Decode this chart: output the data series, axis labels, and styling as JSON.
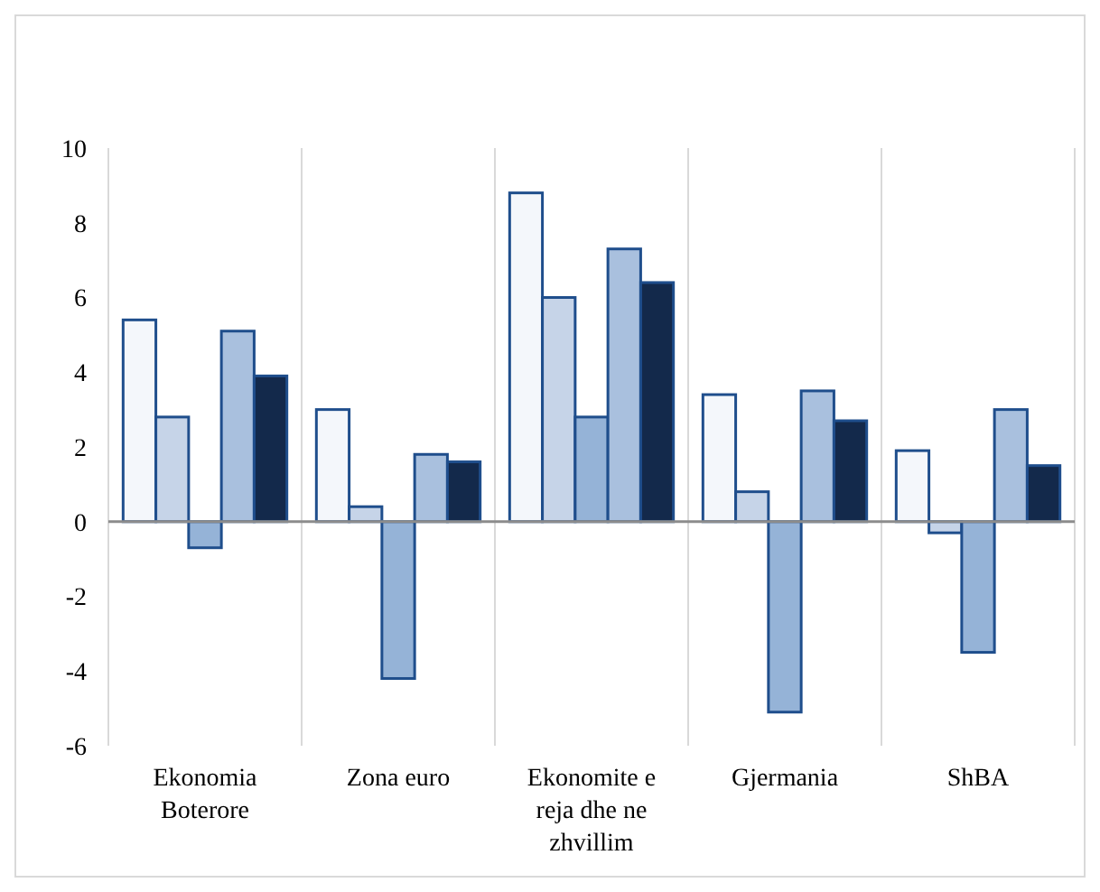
{
  "chart_data": {
    "type": "bar",
    "categories": [
      "Ekonomia Boterore",
      "Zona euro",
      "Ekonomite e reja dhe ne zhvillim",
      "Gjermania",
      "ShBA"
    ],
    "series": [
      {
        "color": "#f4f7fb",
        "values": [
          5.4,
          3.0,
          8.8,
          3.4,
          1.9
        ]
      },
      {
        "color": "#c6d4e8",
        "values": [
          2.8,
          0.4,
          6.0,
          0.8,
          -0.3
        ]
      },
      {
        "color": "#95b3d7",
        "values": [
          -0.7,
          -4.2,
          2.8,
          -5.1,
          -3.5
        ]
      },
      {
        "color": "#a9c0de",
        "values": [
          5.1,
          1.8,
          7.3,
          3.5,
          3.0
        ]
      },
      {
        "color": "#13294b",
        "values": [
          3.9,
          1.6,
          6.4,
          2.7,
          1.5
        ]
      }
    ],
    "ylim": [
      -6,
      10
    ],
    "yticks": [
      -6,
      -4,
      -2,
      0,
      2,
      4,
      6,
      8,
      10
    ],
    "grid": "x"
  }
}
